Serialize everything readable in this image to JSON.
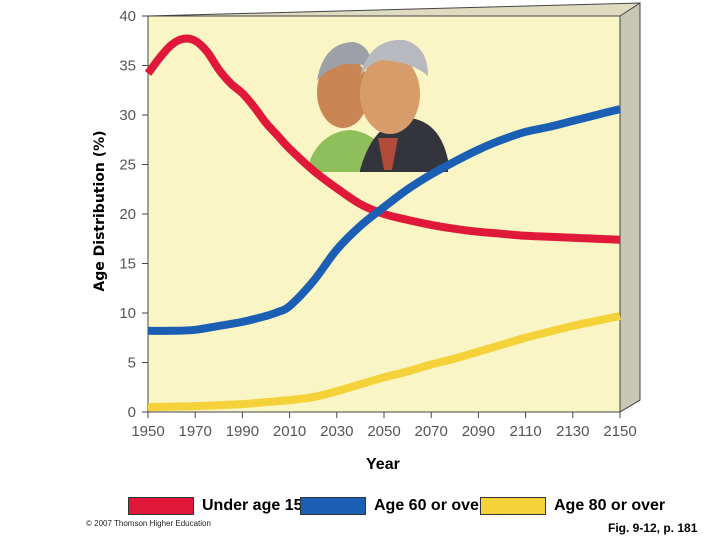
{
  "chart_data": {
    "type": "line",
    "title": "",
    "xlabel": "Year",
    "ylabel": "Age Distribution (%)",
    "xlim": [
      1950,
      2150
    ],
    "ylim": [
      0,
      40
    ],
    "x_ticks": [
      "1950",
      "1970",
      "1990",
      "2010",
      "2030",
      "2050",
      "2070",
      "2090",
      "2110",
      "2130",
      "2150"
    ],
    "y_ticks": [
      "0",
      "5",
      "10",
      "15",
      "20",
      "25",
      "30",
      "35",
      "40"
    ],
    "grid": false,
    "legend_position": "bottom",
    "series": [
      {
        "name": "Under age 15",
        "color": "#e0183a",
        "x": [
          1950,
          1955,
          1960,
          1965,
          1970,
          1975,
          1980,
          1985,
          1990,
          1995,
          2000,
          2005,
          2010,
          2020,
          2030,
          2040,
          2050,
          2060,
          2070,
          2080,
          2090,
          2100,
          2110,
          2120,
          2130,
          2140,
          2150
        ],
        "y": [
          34.2,
          35.8,
          37.1,
          37.7,
          37.5,
          36.4,
          34.6,
          33.2,
          32.2,
          30.8,
          29.2,
          27.9,
          26.6,
          24.4,
          22.6,
          21.0,
          20.0,
          19.4,
          18.9,
          18.5,
          18.2,
          18.0,
          17.8,
          17.7,
          17.6,
          17.5,
          17.4
        ]
      },
      {
        "name": "Age 60 or over",
        "color": "#1a5fb4",
        "x": [
          1950,
          1960,
          1970,
          1980,
          1990,
          2000,
          2005,
          2010,
          2020,
          2030,
          2040,
          2050,
          2060,
          2070,
          2080,
          2090,
          2100,
          2110,
          2120,
          2130,
          2140,
          2150
        ],
        "y": [
          8.2,
          8.2,
          8.3,
          8.7,
          9.1,
          9.7,
          10.1,
          10.7,
          13.2,
          16.4,
          18.8,
          20.7,
          22.5,
          24.0,
          25.3,
          26.5,
          27.5,
          28.3,
          28.8,
          29.4,
          30.0,
          30.6
        ]
      },
      {
        "name": "Age 80 or over",
        "color": "#f6d23a",
        "x": [
          1950,
          1970,
          1990,
          2000,
          2010,
          2020,
          2030,
          2040,
          2050,
          2060,
          2070,
          2080,
          2090,
          2100,
          2110,
          2120,
          2130,
          2140,
          2150
        ],
        "y": [
          0.5,
          0.6,
          0.8,
          1.0,
          1.2,
          1.5,
          2.1,
          2.8,
          3.5,
          4.1,
          4.8,
          5.4,
          6.1,
          6.8,
          7.5,
          8.1,
          8.7,
          9.2,
          9.7
        ]
      }
    ]
  },
  "footer": {
    "copyright": "© 2007 Thomson Higher Education",
    "figure_ref": "Fig. 9-12, p. 181"
  }
}
